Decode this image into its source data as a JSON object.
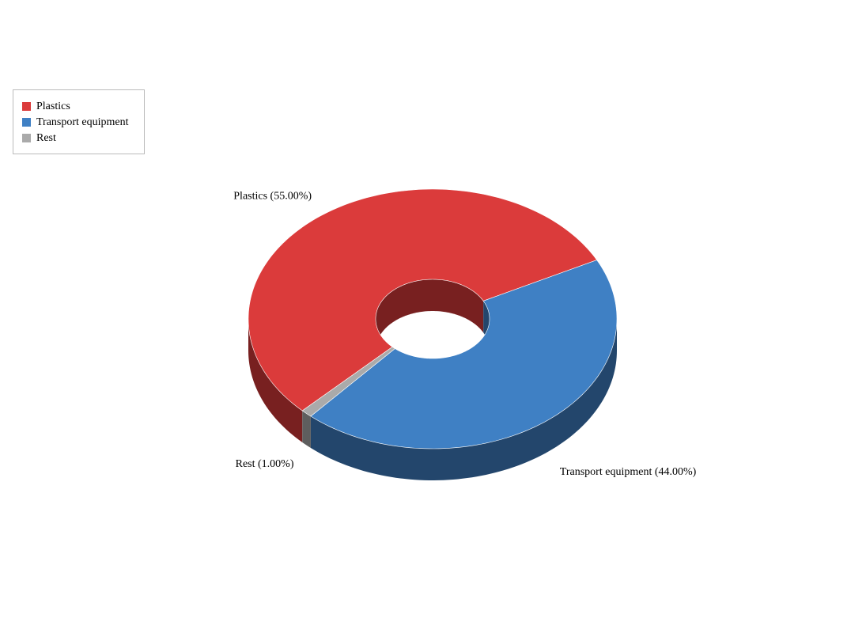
{
  "chart_data": {
    "type": "pie",
    "donut": true,
    "three_d": true,
    "categories": [
      "Plastics",
      "Transport equipment",
      "Rest"
    ],
    "values": [
      55,
      44,
      1
    ],
    "value_labels": [
      "Plastics (55.00%)",
      "Transport equipment (44.00%)",
      "Rest (1.00%)"
    ],
    "colors": [
      "#db3b3b",
      "#3f80c4",
      "#aaaaaa"
    ],
    "legend": "top-left"
  }
}
